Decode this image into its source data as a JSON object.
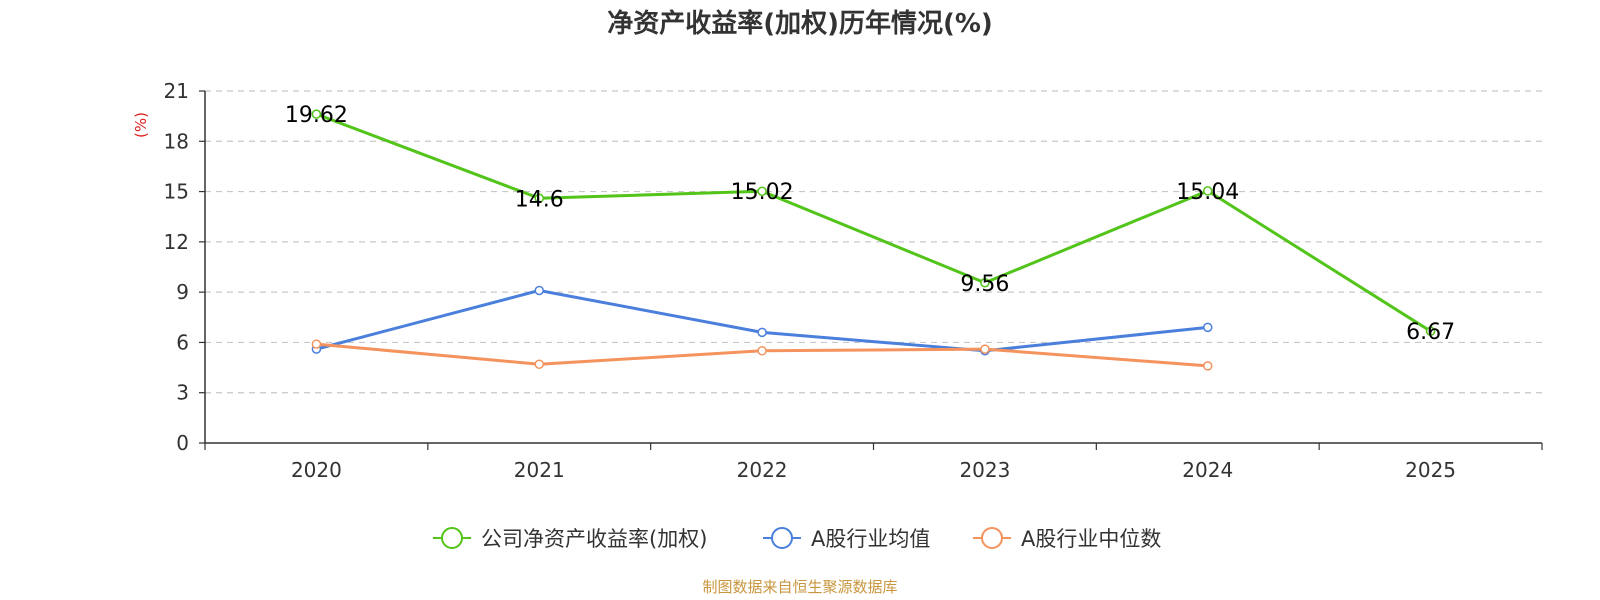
{
  "chart_data": {
    "type": "line",
    "title": "净资产收益率(加权)历年情况(%)",
    "ylabel": "(%)",
    "xlabel": "",
    "categories": [
      "2020",
      "2021",
      "2022",
      "2023",
      "2024",
      "2025"
    ],
    "ylim": [
      0,
      21
    ],
    "yticks": [
      0,
      3,
      6,
      9,
      12,
      15,
      18,
      21
    ],
    "grid": true,
    "legend_position": "bottom",
    "series": [
      {
        "name": "公司净资产收益率(加权)",
        "color": "#52c41a",
        "values": [
          19.62,
          14.6,
          15.02,
          9.56,
          15.04,
          6.67
        ],
        "labels": true
      },
      {
        "name": "A股行业均值",
        "color": "#4a7fdc",
        "values": [
          5.6,
          9.1,
          6.6,
          5.5,
          6.9,
          null
        ],
        "labels": false
      },
      {
        "name": "A股行业中位数",
        "color": "#f4935e",
        "values": [
          5.9,
          4.7,
          5.5,
          5.6,
          4.6,
          null
        ],
        "labels": false
      }
    ]
  },
  "source": {
    "text": "制图数据来自恒生聚源数据库",
    "color": "#c8963e"
  },
  "axis_label_color": "#e02020"
}
